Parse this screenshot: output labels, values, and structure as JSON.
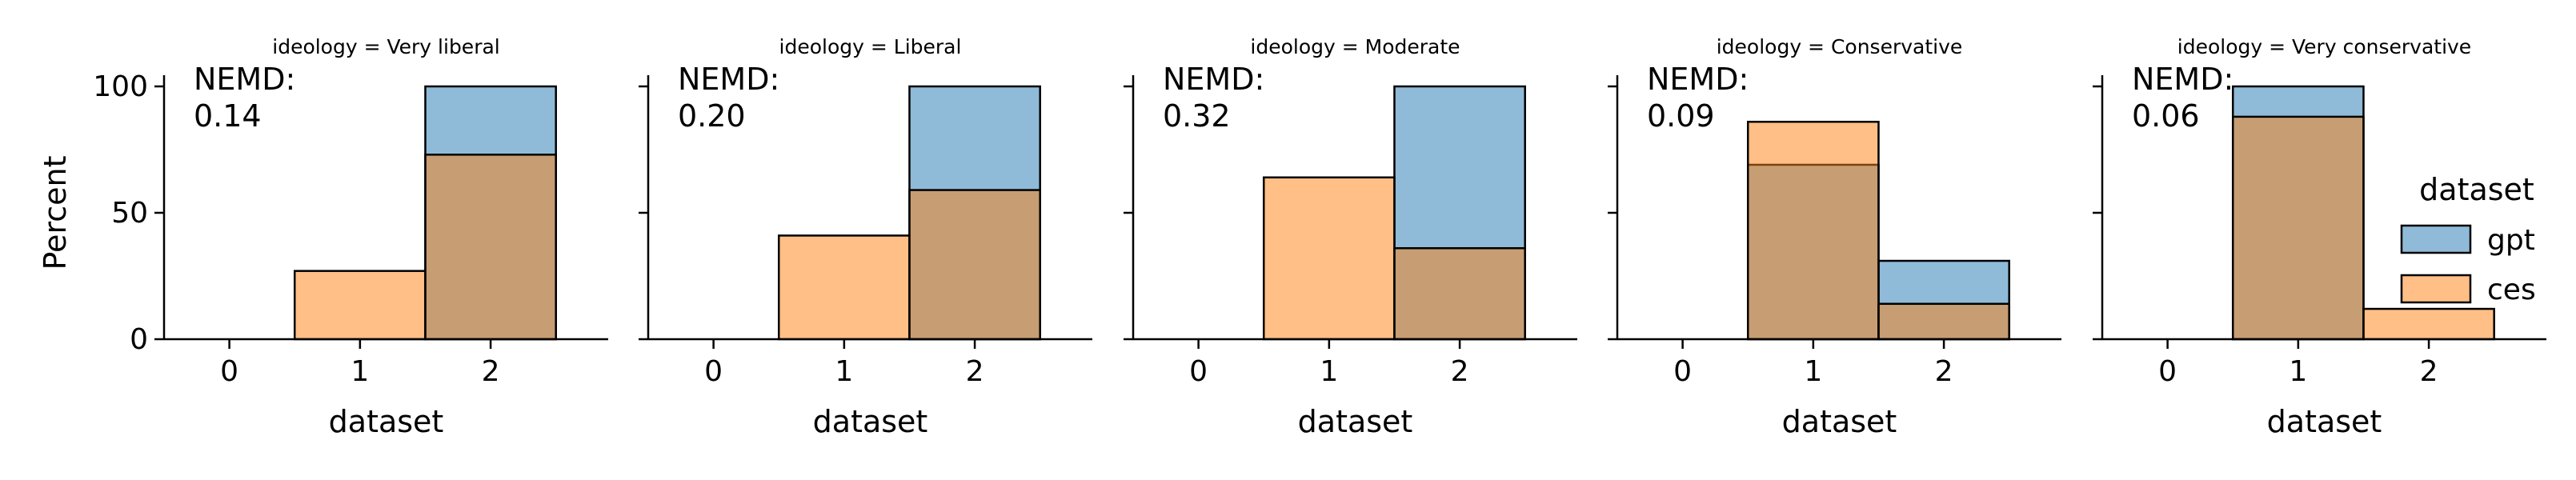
{
  "chart_data": {
    "type": "bar",
    "facet_variable": "ideology",
    "xlabel": "dataset",
    "ylabel": "Percent",
    "ylim": [
      0,
      100
    ],
    "yticks": [
      0,
      50,
      100
    ],
    "xticks": [
      0,
      1,
      2
    ],
    "bins": [
      0,
      1,
      2
    ],
    "colors": {
      "gpt": "#1f77b4",
      "ces": "#ff7f0e",
      "overlap": "#8c969a"
    },
    "legend": {
      "title": "dataset",
      "entries": [
        "gpt",
        "ces"
      ],
      "placement": "right"
    },
    "facets": [
      {
        "title": "ideology = Very liberal",
        "annotation": [
          "NEMD:",
          "0.14"
        ],
        "series": [
          {
            "name": "gpt",
            "values": [
              0,
              0,
              100
            ]
          },
          {
            "name": "ces",
            "values": [
              0,
              27,
              73
            ]
          }
        ]
      },
      {
        "title": "ideology = Liberal",
        "annotation": [
          "NEMD:",
          "0.20"
        ],
        "series": [
          {
            "name": "gpt",
            "values": [
              0,
              0,
              100
            ]
          },
          {
            "name": "ces",
            "values": [
              0,
              41,
              59
            ]
          }
        ]
      },
      {
        "title": "ideology = Moderate",
        "annotation": [
          "NEMD:",
          "0.32"
        ],
        "series": [
          {
            "name": "gpt",
            "values": [
              0,
              0,
              100
            ]
          },
          {
            "name": "ces",
            "values": [
              0,
              64,
              36
            ]
          }
        ]
      },
      {
        "title": "ideology = Conservative",
        "annotation": [
          "NEMD:",
          "0.09"
        ],
        "series": [
          {
            "name": "gpt",
            "values": [
              0,
              69,
              31
            ]
          },
          {
            "name": "ces",
            "values": [
              0,
              86,
              14
            ]
          }
        ]
      },
      {
        "title": "ideology = Very conservative",
        "annotation": [
          "NEMD:",
          "0.06"
        ],
        "series": [
          {
            "name": "gpt",
            "values": [
              0,
              100,
              0
            ]
          },
          {
            "name": "ces",
            "values": [
              0,
              88,
              12
            ]
          }
        ]
      }
    ]
  }
}
